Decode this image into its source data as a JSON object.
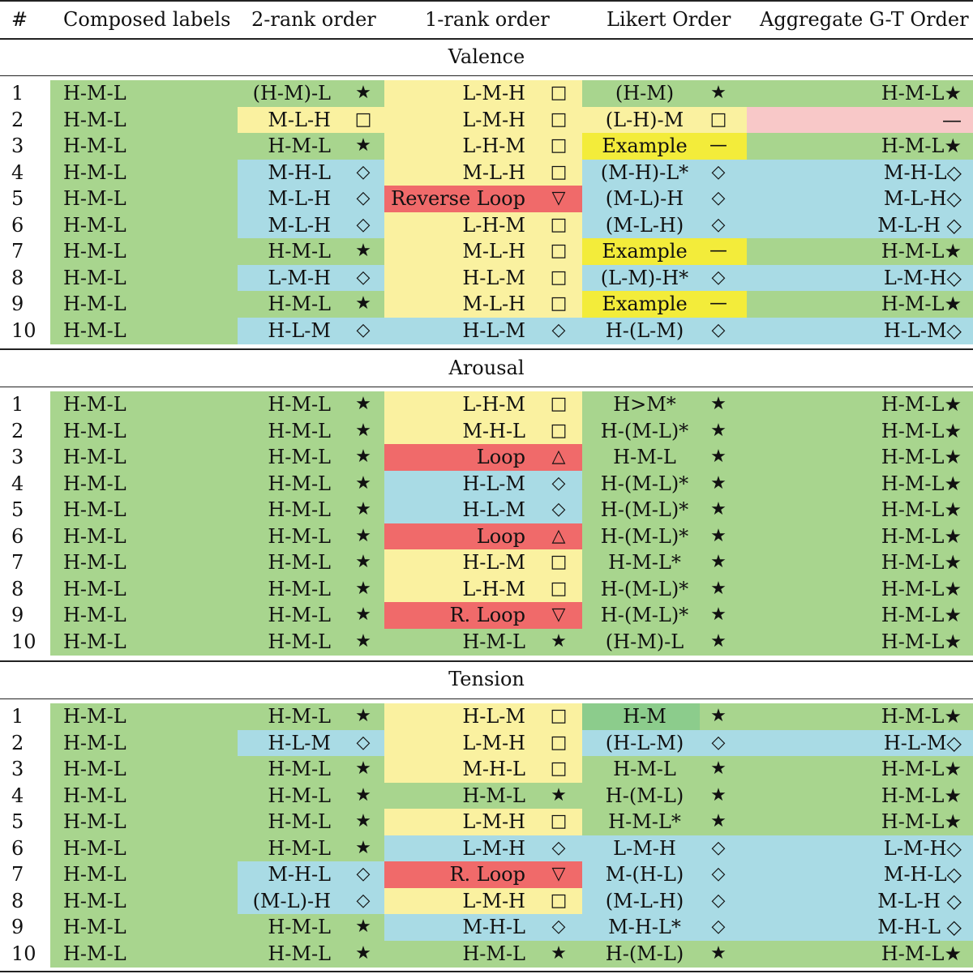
{
  "colors": {
    "green": "#a8d58e",
    "yellow": "#faf1a0",
    "blue": "#a9dbe5",
    "red": "#f06a6a",
    "pink": "#f8c8c8",
    "bright_yellow": "#f3ec3a",
    "dark_green": "#8ccc8c"
  },
  "header": [
    "#",
    "Composed labels",
    "2-rank order",
    "1-rank order",
    "Likert Order",
    "Aggregate G-T Order"
  ],
  "sections": [
    {
      "title": "Valence",
      "rows": [
        {
          "n": "1",
          "composed": "H-M-L",
          "c": {
            "t": "(H-M)-L",
            "s": "★",
            "bg": "green"
          },
          "r": {
            "t": "L-M-H",
            "s": "□",
            "bg": "yellow"
          },
          "l": {
            "t": "(H-M)",
            "s": "★",
            "bg": "green"
          },
          "a": {
            "t": "H-M-L★",
            "bg": "green"
          }
        },
        {
          "n": "2",
          "composed": "H-M-L",
          "c": {
            "t": "M-L-H",
            "s": "□",
            "bg": "yellow"
          },
          "r": {
            "t": "L-M-H",
            "s": "□",
            "bg": "yellow"
          },
          "l": {
            "t": "(L-H)-M",
            "s": "□",
            "bg": "yellow"
          },
          "a": {
            "t": "—",
            "bg": "pink"
          }
        },
        {
          "n": "3",
          "composed": "H-M-L",
          "c": {
            "t": "H-M-L",
            "s": "★",
            "bg": "green"
          },
          "r": {
            "t": "L-H-M",
            "s": "□",
            "bg": "yellow"
          },
          "l": {
            "t": "Example",
            "s": "—",
            "bg": "bright_yellow"
          },
          "a": {
            "t": "H-M-L★",
            "bg": "green"
          }
        },
        {
          "n": "4",
          "composed": "H-M-L",
          "c": {
            "t": "M-H-L",
            "s": "◇",
            "bg": "blue"
          },
          "r": {
            "t": "M-L-H",
            "s": "□",
            "bg": "yellow"
          },
          "l": {
            "t": "(M-H)-L*",
            "s": "◇",
            "bg": "blue"
          },
          "a": {
            "t": "M-H-L◇",
            "bg": "blue"
          }
        },
        {
          "n": "5",
          "composed": "H-M-L",
          "c": {
            "t": "M-L-H",
            "s": "◇",
            "bg": "blue"
          },
          "r": {
            "t": "Reverse Loop",
            "s": "▽",
            "bg": "red"
          },
          "l": {
            "t": "(M-L)-H",
            "s": "◇",
            "bg": "blue"
          },
          "a": {
            "t": "M-L-H◇",
            "bg": "blue"
          }
        },
        {
          "n": "6",
          "composed": "H-M-L",
          "c": {
            "t": "M-L-H",
            "s": "◇",
            "bg": "blue"
          },
          "r": {
            "t": "L-H-M",
            "s": "□",
            "bg": "yellow"
          },
          "l": {
            "t": "(M-L-H)",
            "s": "◇",
            "bg": "blue"
          },
          "a": {
            "t": "M-L-H ◇",
            "bg": "blue"
          }
        },
        {
          "n": "7",
          "composed": "H-M-L",
          "c": {
            "t": "H-M-L",
            "s": "★",
            "bg": "green"
          },
          "r": {
            "t": "M-L-H",
            "s": "□",
            "bg": "yellow"
          },
          "l": {
            "t": "Example",
            "s": "—",
            "bg": "bright_yellow"
          },
          "a": {
            "t": "H-M-L★",
            "bg": "green"
          }
        },
        {
          "n": "8",
          "composed": "H-M-L",
          "c": {
            "t": "L-M-H",
            "s": "◇",
            "bg": "blue"
          },
          "r": {
            "t": "H-L-M",
            "s": "□",
            "bg": "yellow"
          },
          "l": {
            "t": "(L-M)-H*",
            "s": "◇",
            "bg": "blue"
          },
          "a": {
            "t": "L-M-H◇",
            "bg": "blue"
          }
        },
        {
          "n": "9",
          "composed": "H-M-L",
          "c": {
            "t": "H-M-L",
            "s": "★",
            "bg": "green"
          },
          "r": {
            "t": "M-L-H",
            "s": "□",
            "bg": "yellow"
          },
          "l": {
            "t": "Example",
            "s": "—",
            "bg": "bright_yellow"
          },
          "a": {
            "t": "H-M-L★",
            "bg": "green"
          }
        },
        {
          "n": "10",
          "composed": "H-M-L",
          "c": {
            "t": "H-L-M",
            "s": "◇",
            "bg": "blue"
          },
          "r": {
            "t": "H-L-M",
            "s": "◇",
            "bg": "blue"
          },
          "l": {
            "t": "H-(L-M)",
            "s": "◇",
            "bg": "blue"
          },
          "a": {
            "t": "H-L-M◇",
            "bg": "blue"
          }
        }
      ]
    },
    {
      "title": "Arousal",
      "rows": [
        {
          "n": "1",
          "composed": "H-M-L",
          "c": {
            "t": "H-M-L",
            "s": "★",
            "bg": "green"
          },
          "r": {
            "t": "L-H-M",
            "s": "□",
            "bg": "yellow"
          },
          "l": {
            "t": "H>M*",
            "s": "★",
            "bg": "green"
          },
          "a": {
            "t": "H-M-L★",
            "bg": "green"
          }
        },
        {
          "n": "2",
          "composed": "H-M-L",
          "c": {
            "t": "H-M-L",
            "s": "★",
            "bg": "green"
          },
          "r": {
            "t": "M-H-L",
            "s": "□",
            "bg": "yellow"
          },
          "l": {
            "t": "H-(M-L)*",
            "s": "★",
            "bg": "green"
          },
          "a": {
            "t": "H-M-L★",
            "bg": "green"
          }
        },
        {
          "n": "3",
          "composed": "H-M-L",
          "c": {
            "t": "H-M-L",
            "s": "★",
            "bg": "green"
          },
          "r": {
            "t": "Loop",
            "s": "△",
            "bg": "red"
          },
          "l": {
            "t": "H-M-L",
            "s": "★",
            "bg": "green"
          },
          "a": {
            "t": "H-M-L★",
            "bg": "green"
          }
        },
        {
          "n": "4",
          "composed": "H-M-L",
          "c": {
            "t": "H-M-L",
            "s": "★",
            "bg": "green"
          },
          "r": {
            "t": "H-L-M",
            "s": "◇",
            "bg": "blue"
          },
          "l": {
            "t": "H-(M-L)*",
            "s": "★",
            "bg": "green"
          },
          "a": {
            "t": "H-M-L★",
            "bg": "green"
          }
        },
        {
          "n": "5",
          "composed": "H-M-L",
          "c": {
            "t": "H-M-L",
            "s": "★",
            "bg": "green"
          },
          "r": {
            "t": "H-L-M",
            "s": "◇",
            "bg": "blue"
          },
          "l": {
            "t": "H-(M-L)*",
            "s": "★",
            "bg": "green"
          },
          "a": {
            "t": "H-M-L★",
            "bg": "green"
          }
        },
        {
          "n": "6",
          "composed": "H-M-L",
          "c": {
            "t": "H-M-L",
            "s": "★",
            "bg": "green"
          },
          "r": {
            "t": "Loop",
            "s": "△",
            "bg": "red"
          },
          "l": {
            "t": "H-(M-L)*",
            "s": "★",
            "bg": "green"
          },
          "a": {
            "t": "H-M-L★",
            "bg": "green"
          }
        },
        {
          "n": "7",
          "composed": "H-M-L",
          "c": {
            "t": "H-M-L",
            "s": "★",
            "bg": "green"
          },
          "r": {
            "t": "H-L-M",
            "s": "□",
            "bg": "yellow"
          },
          "l": {
            "t": "H-M-L*",
            "s": "★",
            "bg": "green"
          },
          "a": {
            "t": "H-M-L★",
            "bg": "green"
          }
        },
        {
          "n": "8",
          "composed": "H-M-L",
          "c": {
            "t": "H-M-L",
            "s": "★",
            "bg": "green"
          },
          "r": {
            "t": "L-H-M",
            "s": "□",
            "bg": "yellow"
          },
          "l": {
            "t": "H-(M-L)*",
            "s": "★",
            "bg": "green"
          },
          "a": {
            "t": "H-M-L★",
            "bg": "green"
          }
        },
        {
          "n": "9",
          "composed": "H-M-L",
          "c": {
            "t": "H-M-L",
            "s": "★",
            "bg": "green"
          },
          "r": {
            "t": "R. Loop",
            "s": "▽",
            "bg": "red"
          },
          "l": {
            "t": "H-(M-L)*",
            "s": "★",
            "bg": "green"
          },
          "a": {
            "t": "H-M-L★",
            "bg": "green"
          }
        },
        {
          "n": "10",
          "composed": "H-M-L",
          "c": {
            "t": "H-M-L",
            "s": "★",
            "bg": "green"
          },
          "r": {
            "t": "H-M-L",
            "s": "★",
            "bg": "green"
          },
          "l": {
            "t": "(H-M)-L",
            "s": "★",
            "bg": "green"
          },
          "a": {
            "t": "H-M-L★",
            "bg": "green"
          }
        }
      ]
    },
    {
      "title": "Tension",
      "rows": [
        {
          "n": "1",
          "composed": "H-M-L",
          "c": {
            "t": "H-M-L",
            "s": "★",
            "bg": "green"
          },
          "r": {
            "t": "H-L-M",
            "s": "□",
            "bg": "yellow"
          },
          "l": {
            "t": "H-M",
            "s": "★",
            "bg": "green",
            "tbg": "dark_green"
          },
          "a": {
            "t": "H-M-L★",
            "bg": "green"
          }
        },
        {
          "n": "2",
          "composed": "H-M-L",
          "c": {
            "t": "H-L-M",
            "s": "◇",
            "bg": "blue"
          },
          "r": {
            "t": "L-M-H",
            "s": "□",
            "bg": "yellow"
          },
          "l": {
            "t": "(H-L-M)",
            "s": "◇",
            "bg": "blue"
          },
          "a": {
            "t": "H-L-M◇",
            "bg": "blue"
          }
        },
        {
          "n": "3",
          "composed": "H-M-L",
          "c": {
            "t": "H-M-L",
            "s": "★",
            "bg": "green"
          },
          "r": {
            "t": "M-H-L",
            "s": "□",
            "bg": "yellow"
          },
          "l": {
            "t": "H-M-L",
            "s": "★",
            "bg": "green"
          },
          "a": {
            "t": "H-M-L★",
            "bg": "green"
          }
        },
        {
          "n": "4",
          "composed": "H-M-L",
          "c": {
            "t": "H-M-L",
            "s": "★",
            "bg": "green"
          },
          "r": {
            "t": "H-M-L",
            "s": "★",
            "bg": "green"
          },
          "l": {
            "t": "H-(M-L)",
            "s": "★",
            "bg": "green"
          },
          "a": {
            "t": "H-M-L★",
            "bg": "green"
          }
        },
        {
          "n": "5",
          "composed": "H-M-L",
          "c": {
            "t": "H-M-L",
            "s": "★",
            "bg": "green"
          },
          "r": {
            "t": "L-M-H",
            "s": "□",
            "bg": "yellow"
          },
          "l": {
            "t": "H-M-L*",
            "s": "★",
            "bg": "green"
          },
          "a": {
            "t": "H-M-L★",
            "bg": "green"
          }
        },
        {
          "n": "6",
          "composed": "H-M-L",
          "c": {
            "t": "H-M-L",
            "s": "★",
            "bg": "green"
          },
          "r": {
            "t": "L-M-H",
            "s": "◇",
            "bg": "blue"
          },
          "l": {
            "t": "L-M-H",
            "s": "◇",
            "bg": "blue"
          },
          "a": {
            "t": "L-M-H◇",
            "bg": "blue"
          }
        },
        {
          "n": "7",
          "composed": "H-M-L",
          "c": {
            "t": "M-H-L",
            "s": "◇",
            "bg": "blue"
          },
          "r": {
            "t": "R. Loop",
            "s": "▽",
            "bg": "red"
          },
          "l": {
            "t": "M-(H-L)",
            "s": "◇",
            "bg": "blue"
          },
          "a": {
            "t": "M-H-L◇",
            "bg": "blue"
          }
        },
        {
          "n": "8",
          "composed": "H-M-L",
          "c": {
            "t": "(M-L)-H",
            "s": "◇",
            "bg": "blue"
          },
          "r": {
            "t": "L-M-H",
            "s": "□",
            "bg": "yellow"
          },
          "l": {
            "t": "(M-L-H)",
            "s": "◇",
            "bg": "blue"
          },
          "a": {
            "t": "M-L-H ◇",
            "bg": "blue"
          }
        },
        {
          "n": "9",
          "composed": "H-M-L",
          "c": {
            "t": "H-M-L",
            "s": "★",
            "bg": "green"
          },
          "r": {
            "t": "M-H-L",
            "s": "◇",
            "bg": "blue"
          },
          "l": {
            "t": "M-H-L*",
            "s": "◇",
            "bg": "blue"
          },
          "a": {
            "t": "M-H-L ◇",
            "bg": "blue"
          }
        },
        {
          "n": "10",
          "composed": "H-M-L",
          "c": {
            "t": "H-M-L",
            "s": "★",
            "bg": "green"
          },
          "r": {
            "t": "H-M-L",
            "s": "★",
            "bg": "green"
          },
          "l": {
            "t": "H-(M-L)",
            "s": "★",
            "bg": "green"
          },
          "a": {
            "t": "H-M-L★",
            "bg": "green"
          }
        }
      ]
    }
  ]
}
